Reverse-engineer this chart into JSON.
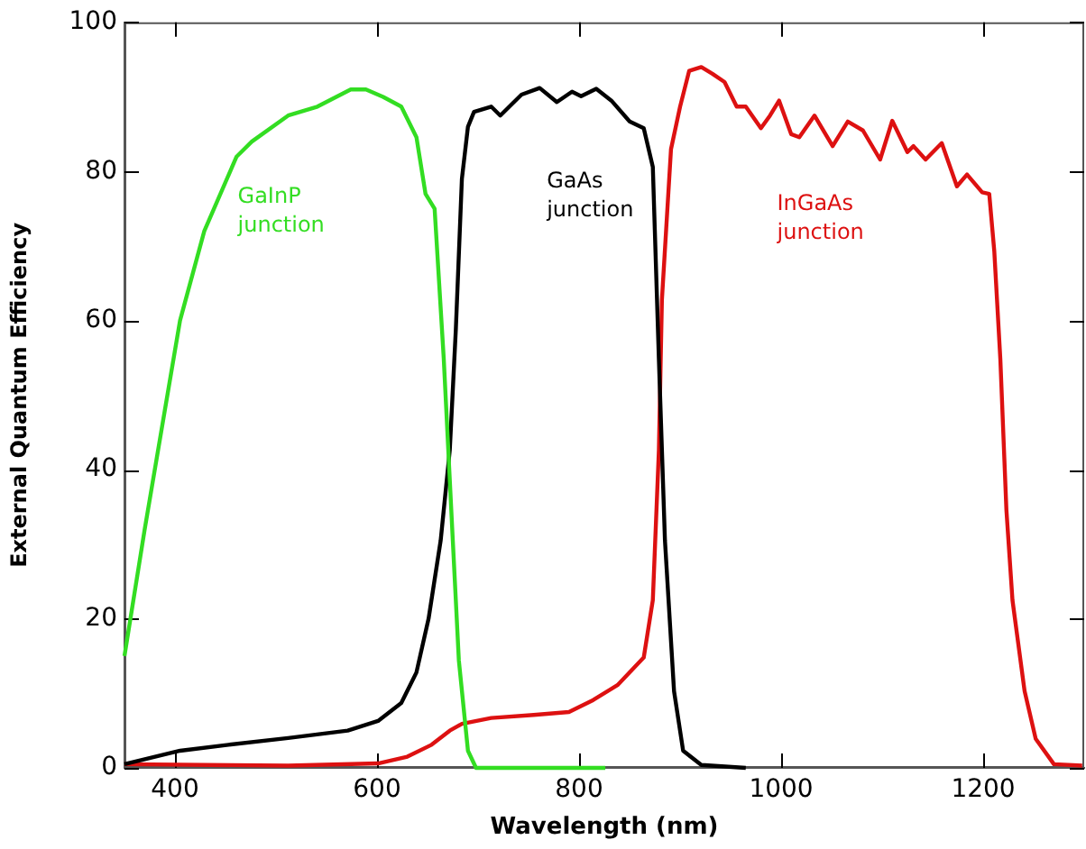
{
  "chart_data": {
    "type": "line",
    "xlabel": "Wavelength (nm)",
    "ylabel": "External Quantum Efficiency",
    "xlim": [
      350,
      1300
    ],
    "xticks": [
      400,
      600,
      800,
      1000,
      1200
    ],
    "ylim": [
      0,
      100
    ],
    "yticks": [
      0,
      20,
      40,
      60,
      80,
      100
    ],
    "grid": false,
    "legend": false,
    "marker": "none",
    "line_style": "solid",
    "series": [
      {
        "name": "GaInP junction",
        "color": "#33dd22",
        "x": [
          350,
          370,
          390,
          405,
          429,
          461,
          476,
          512,
          541,
          574,
          589,
          606,
          624,
          639,
          648,
          657,
          666,
          675,
          681,
          690,
          698,
          826
        ],
        "values": [
          15,
          32,
          48,
          60,
          72,
          82,
          84,
          87.5,
          88.7,
          91,
          91,
          90,
          88.7,
          84.6,
          77,
          75,
          55,
          30.5,
          14.4,
          2.3,
          0,
          0
        ]
      },
      {
        "name": "GaAs junction",
        "color": "#000000",
        "x": [
          350,
          405,
          453,
          512,
          571,
          601,
          624,
          639,
          651,
          663,
          672,
          678,
          684,
          690,
          696,
          713,
          722,
          731,
          743,
          761,
          778,
          793,
          802,
          817,
          832,
          850,
          864,
          873,
          879,
          885,
          894,
          903,
          921,
          965
        ],
        "values": [
          0.5,
          2.3,
          3.1,
          4,
          5,
          6.3,
          8.7,
          12.8,
          20,
          30.5,
          42.6,
          58.8,
          79,
          86,
          88,
          88.7,
          87.5,
          88.7,
          90.3,
          91.2,
          89.3,
          90.7,
          90.1,
          91.1,
          89.5,
          86.7,
          85.8,
          80.6,
          54.8,
          30.5,
          10.3,
          2.3,
          0.4,
          0
        ]
      },
      {
        "name": "InGaAs junction",
        "color": "#dd1111",
        "x": [
          350,
          512,
          601,
          630,
          654,
          672,
          684,
          713,
          755,
          790,
          814,
          838,
          864,
          873,
          879,
          882,
          891,
          900,
          909,
          921,
          932,
          944,
          956,
          965,
          980,
          989,
          998,
          1010,
          1018,
          1033,
          1051,
          1066,
          1081,
          1098,
          1110,
          1125,
          1131,
          1143,
          1159,
          1174,
          1184,
          1199,
          1206,
          1211,
          1217,
          1223,
          1229,
          1241,
          1252,
          1270,
          1298
        ],
        "values": [
          0.5,
          0.3,
          0.6,
          1.5,
          3.1,
          5,
          5.9,
          6.7,
          7.1,
          7.5,
          9.1,
          11.1,
          14.8,
          22.5,
          42.6,
          62.8,
          83,
          88.7,
          93.5,
          94,
          93.1,
          92,
          88.7,
          88.7,
          85.8,
          87.5,
          89.5,
          85,
          84.6,
          87.5,
          83.4,
          86.7,
          85.5,
          81.6,
          86.8,
          82.6,
          83.4,
          81.6,
          83.8,
          78,
          79.6,
          77.2,
          77,
          69.3,
          54.8,
          34.6,
          22.5,
          10.3,
          3.9,
          0.5,
          0.3
        ]
      }
    ]
  }
}
